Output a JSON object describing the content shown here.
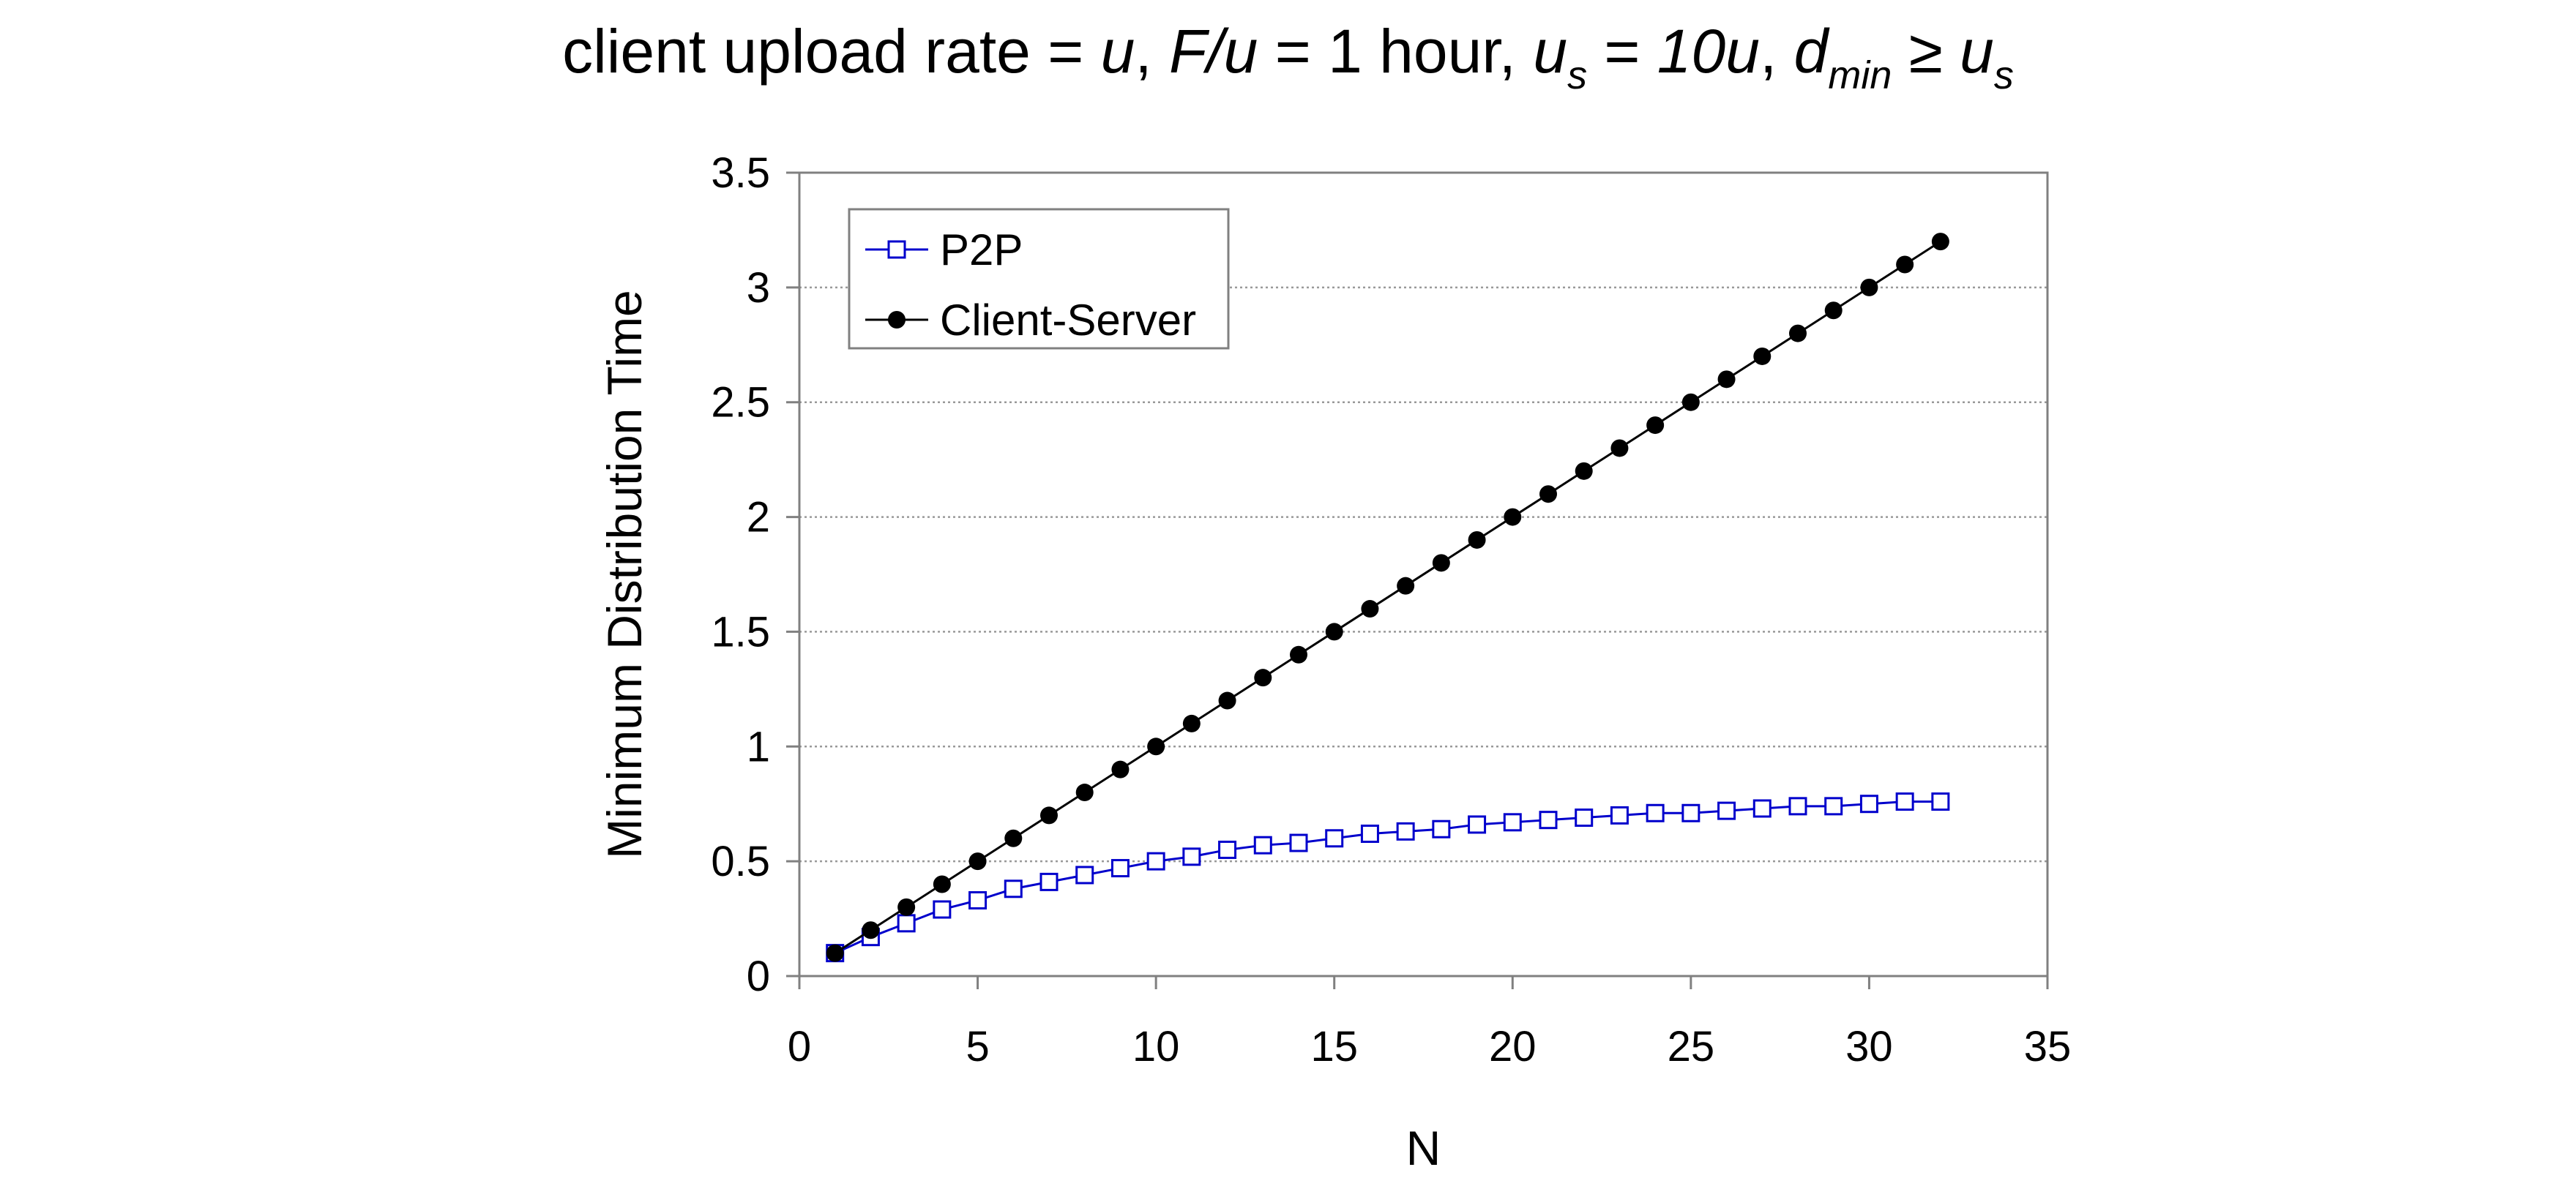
{
  "title": {
    "p1": "client upload rate = ",
    "u1": "u",
    "p2": ",  ",
    "fu": "F/u",
    "p3": " = 1 hour,  ",
    "us_base": "u",
    "us_sub": "s",
    "p4": " = ",
    "tenu": "10u",
    "p5": ",  ",
    "d_base": "d",
    "d_sub": "min",
    "p6": " ≥ ",
    "us2_base": "u",
    "us2_sub": "s"
  },
  "colors": {
    "p2p": "#0000CC",
    "client_server": "#000000",
    "grid": "#999999",
    "axis": "#808080"
  },
  "chart_data": {
    "type": "line",
    "xlabel": "N",
    "ylabel": "Minimum Distribution Time",
    "xlim": [
      0,
      35
    ],
    "ylim": [
      0,
      3.5
    ],
    "xticks": [
      0,
      5,
      10,
      15,
      20,
      25,
      30,
      35
    ],
    "yticks": [
      0,
      0.5,
      1,
      1.5,
      2,
      2.5,
      3,
      3.5
    ],
    "ytick_labels": [
      "0",
      "0.5",
      "1",
      "1.5",
      "2",
      "2.5",
      "3",
      "3.5"
    ],
    "grid": "horizontal dotted",
    "legend_position": "top-left",
    "x": [
      1,
      2,
      3,
      4,
      5,
      6,
      7,
      8,
      9,
      10,
      11,
      12,
      13,
      14,
      15,
      16,
      17,
      18,
      19,
      20,
      21,
      22,
      23,
      24,
      25,
      26,
      27,
      28,
      29,
      30,
      31,
      32
    ],
    "series": [
      {
        "name": "P2P",
        "marker": "open-square",
        "values": [
          0.1,
          0.17,
          0.23,
          0.29,
          0.33,
          0.38,
          0.41,
          0.44,
          0.47,
          0.5,
          0.52,
          0.55,
          0.57,
          0.58,
          0.6,
          0.62,
          0.63,
          0.64,
          0.66,
          0.67,
          0.68,
          0.69,
          0.7,
          0.71,
          0.71,
          0.72,
          0.73,
          0.74,
          0.74,
          0.75,
          0.76,
          0.76
        ]
      },
      {
        "name": "Client-Server",
        "marker": "filled-circle",
        "values": [
          0.1,
          0.2,
          0.3,
          0.4,
          0.5,
          0.6,
          0.7,
          0.8,
          0.9,
          1.0,
          1.1,
          1.2,
          1.3,
          1.4,
          1.5,
          1.6,
          1.7,
          1.8,
          1.9,
          2.0,
          2.1,
          2.2,
          2.3,
          2.4,
          2.5,
          2.6,
          2.7,
          2.8,
          2.9,
          3.0,
          3.1,
          3.2
        ]
      }
    ]
  }
}
